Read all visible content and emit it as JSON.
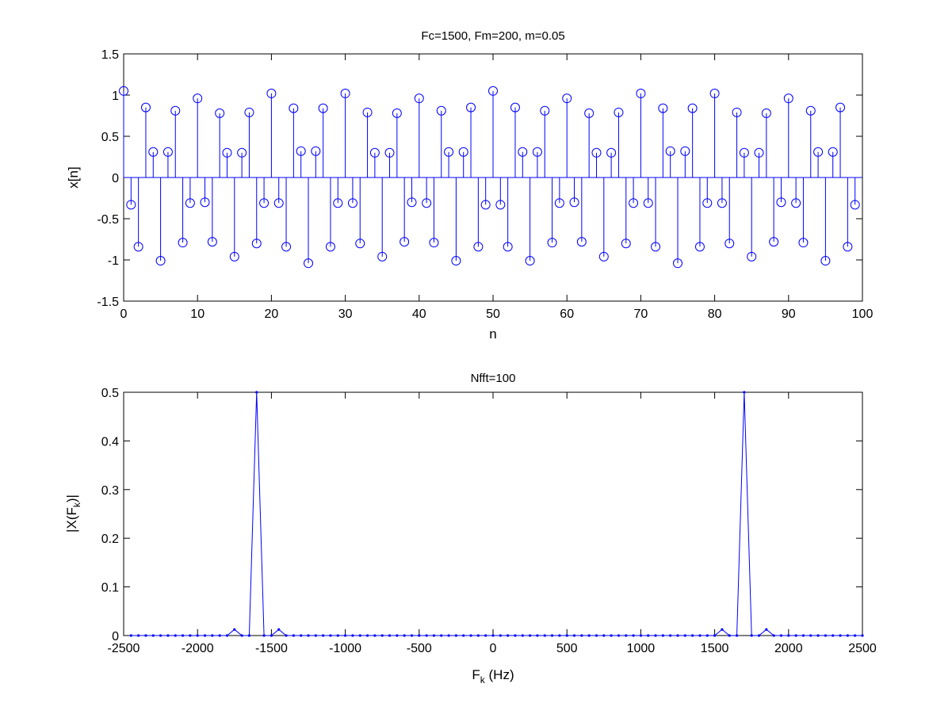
{
  "chart_data": [
    {
      "type": "stem",
      "title": "Fc=1500, Fm=200, m=0.05",
      "xlabel": "n",
      "ylabel": "x[n]",
      "xlim": [
        0,
        100
      ],
      "ylim": [
        -1.5,
        1.5
      ],
      "xticks": [
        "0",
        "10",
        "20",
        "30",
        "40",
        "50",
        "60",
        "70",
        "80",
        "90",
        "100"
      ],
      "yticks": [
        "-1.5",
        "-1",
        "-0.5",
        "0",
        "0.5",
        "1",
        "1.5"
      ],
      "marker": "circle",
      "color": "#0000ff",
      "x": [
        0,
        1,
        2,
        3,
        4,
        5,
        6,
        7,
        8,
        9,
        10,
        11,
        12,
        13,
        14,
        15,
        16,
        17,
        18,
        19,
        20,
        21,
        22,
        23,
        24,
        25,
        26,
        27,
        28,
        29,
        30,
        31,
        32,
        33,
        34,
        35,
        36,
        37,
        38,
        39,
        40,
        41,
        42,
        43,
        44,
        45,
        46,
        47,
        48,
        49,
        50,
        51,
        52,
        53,
        54,
        55,
        56,
        57,
        58,
        59,
        60,
        61,
        62,
        63,
        64,
        65,
        66,
        67,
        68,
        69,
        70,
        71,
        72,
        73,
        74,
        75,
        76,
        77,
        78,
        79,
        80,
        81,
        82,
        83,
        84,
        85,
        86,
        87,
        88,
        89,
        90,
        91,
        92,
        93,
        94,
        95,
        96,
        97,
        98,
        99
      ],
      "y": [
        1.05,
        -0.33,
        -0.84,
        0.85,
        0.31,
        -1.01,
        0.31,
        0.81,
        -0.79,
        -0.31,
        0.96,
        -0.3,
        -0.78,
        0.78,
        0.3,
        -0.96,
        0.3,
        0.79,
        -0.8,
        -0.31,
        1.02,
        -0.31,
        -0.84,
        0.84,
        0.32,
        -1.04,
        0.32,
        0.84,
        -0.84,
        -0.31,
        1.02,
        -0.31,
        -0.8,
        0.79,
        0.3,
        -0.96,
        0.3,
        0.78,
        -0.78,
        -0.3,
        0.96,
        -0.31,
        -0.79,
        0.81,
        0.31,
        -1.01,
        0.31,
        0.85,
        -0.84,
        -0.33,
        1.05,
        -0.33,
        -0.84,
        0.85,
        0.31,
        -1.01,
        0.31,
        0.81,
        -0.79,
        -0.31,
        0.96,
        -0.3,
        -0.78,
        0.78,
        0.3,
        -0.96,
        0.3,
        0.79,
        -0.8,
        -0.31,
        1.02,
        -0.31,
        -0.84,
        0.84,
        0.32,
        -1.04,
        0.32,
        0.84,
        -0.84,
        -0.31,
        1.02,
        -0.31,
        -0.8,
        0.79,
        0.3,
        -0.96,
        0.3,
        0.78,
        -0.78,
        -0.3,
        0.96,
        -0.31,
        -0.79,
        0.81,
        0.31,
        -1.01,
        0.31,
        0.85,
        -0.84,
        -0.33
      ]
    },
    {
      "type": "line",
      "title": "Nfft=100",
      "xlabel_main": "F",
      "xlabel_sub": "k",
      "xlabel_tail": " (Hz)",
      "ylabel_main": "|X(F",
      "ylabel_sub": "k",
      "ylabel_tail": ")|",
      "xlim": [
        -2500,
        2500
      ],
      "ylim": [
        0,
        0.5
      ],
      "xticks": [
        "-2500",
        "-2000",
        "-1500",
        "-1000",
        "-500",
        "0",
        "500",
        "1000",
        "1500",
        "2000",
        "2500"
      ],
      "yticks": [
        "0",
        "0.1",
        "0.2",
        "0.3",
        "0.4",
        "0.5"
      ],
      "marker": "dot",
      "color": "#0000ff",
      "x_start": -2450,
      "x_step": 50,
      "y": [
        0,
        0,
        0,
        0,
        0,
        0,
        0,
        0,
        0,
        0,
        0,
        0,
        0,
        0,
        0.0125,
        0,
        0,
        0.5,
        0,
        0,
        0.0125,
        0,
        0,
        0,
        0,
        0,
        0,
        0,
        0,
        0,
        0,
        0,
        0,
        0,
        0,
        0,
        0,
        0,
        0,
        0,
        0,
        0,
        0,
        0,
        0,
        0,
        0,
        0,
        0,
        0,
        0,
        0,
        0,
        0,
        0,
        0,
        0,
        0,
        0,
        0,
        0,
        0,
        0,
        0,
        0,
        0,
        0,
        0,
        0,
        0,
        0,
        0,
        0,
        0,
        0,
        0,
        0,
        0,
        0,
        0,
        0.0125,
        0,
        0,
        0.5,
        0,
        0,
        0.0125,
        0,
        0,
        0,
        0,
        0,
        0,
        0,
        0,
        0,
        0,
        0,
        0,
        0
      ]
    }
  ]
}
